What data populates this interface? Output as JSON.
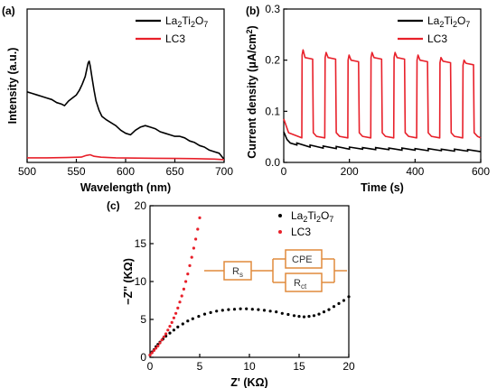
{
  "colors": {
    "la2ti2o7": "#000000",
    "lc3": "#e8202a",
    "circuit": "#e08a3c"
  },
  "chart_data": [
    {
      "panel": "(a)",
      "type": "line",
      "xlabel": "Wavelength (nm)",
      "ylabel": "Intensity (a.u.)",
      "xlim": [
        500,
        700
      ],
      "xticks": [
        500,
        550,
        600,
        650,
        700
      ],
      "ylim": [
        0,
        1
      ],
      "y_tick_labels": false,
      "legend_position": "top-right",
      "series": [
        {
          "name": "La2Ti2O7",
          "color": "#000000",
          "x": [
            500,
            505,
            510,
            515,
            520,
            525,
            530,
            535,
            538,
            542,
            546,
            550,
            553,
            556,
            559,
            561,
            562,
            563,
            564,
            566,
            568,
            570,
            573,
            576,
            580,
            585,
            590,
            595,
            600,
            605,
            610,
            615,
            620,
            625,
            630,
            635,
            640,
            645,
            650,
            655,
            660,
            665,
            670,
            675,
            680,
            685,
            690,
            695,
            700
          ],
          "y": [
            0.46,
            0.45,
            0.44,
            0.43,
            0.42,
            0.41,
            0.39,
            0.38,
            0.37,
            0.4,
            0.42,
            0.44,
            0.47,
            0.51,
            0.56,
            0.62,
            0.65,
            0.66,
            0.63,
            0.55,
            0.47,
            0.4,
            0.34,
            0.3,
            0.28,
            0.26,
            0.24,
            0.21,
            0.19,
            0.18,
            0.21,
            0.23,
            0.24,
            0.23,
            0.22,
            0.2,
            0.19,
            0.18,
            0.17,
            0.17,
            0.16,
            0.14,
            0.13,
            0.11,
            0.1,
            0.08,
            0.07,
            0.06,
            0.02
          ]
        },
        {
          "name": "LC3",
          "color": "#e8202a",
          "x": [
            500,
            520,
            540,
            555,
            560,
            564,
            568,
            575,
            590,
            610,
            630,
            650,
            670,
            690,
            700
          ],
          "y": [
            0.03,
            0.03,
            0.032,
            0.035,
            0.045,
            0.05,
            0.04,
            0.034,
            0.03,
            0.028,
            0.027,
            0.026,
            0.025,
            0.022,
            0.018
          ]
        }
      ]
    },
    {
      "panel": "(b)",
      "type": "line",
      "xlabel": "Time (s)",
      "ylabel": "Current density (μA/cm²)",
      "xlim": [
        0,
        600
      ],
      "xticks": [
        0,
        200,
        400,
        600
      ],
      "ylim": [
        0,
        0.3
      ],
      "yticks": [
        0.0,
        0.1,
        0.2,
        0.3
      ],
      "legend_position": "top-right",
      "series": [
        {
          "name": "La2Ti2O7",
          "color": "#000000",
          "x": [
            0,
            10,
            20,
            40,
            40,
            80,
            80,
            120,
            120,
            160,
            160,
            200,
            200,
            240,
            240,
            280,
            280,
            320,
            320,
            360,
            360,
            400,
            400,
            440,
            440,
            480,
            480,
            520,
            520,
            560,
            560,
            600
          ],
          "y": [
            0.06,
            0.045,
            0.038,
            0.034,
            0.038,
            0.03,
            0.034,
            0.028,
            0.032,
            0.027,
            0.031,
            0.026,
            0.03,
            0.026,
            0.029,
            0.025,
            0.029,
            0.025,
            0.028,
            0.024,
            0.028,
            0.024,
            0.027,
            0.023,
            0.027,
            0.023,
            0.026,
            0.022,
            0.026,
            0.022,
            0.025,
            0.021
          ]
        },
        {
          "name": "LC3",
          "color": "#e8202a",
          "cycles": [
            {
              "on": 55,
              "off": 90,
              "peak": 0.22,
              "plateau": 0.205
            },
            {
              "on": 125,
              "off": 160,
              "peak": 0.215,
              "plateau": 0.205
            },
            {
              "on": 195,
              "off": 230,
              "peak": 0.21,
              "plateau": 0.2
            },
            {
              "on": 265,
              "off": 300,
              "peak": 0.215,
              "plateau": 0.205
            },
            {
              "on": 335,
              "off": 370,
              "peak": 0.215,
              "plateau": 0.205
            },
            {
              "on": 405,
              "off": 440,
              "peak": 0.21,
              "plateau": 0.2
            },
            {
              "on": 475,
              "off": 510,
              "peak": 0.205,
              "plateau": 0.198
            },
            {
              "on": 545,
              "off": 580,
              "peak": 0.2,
              "plateau": 0.194
            }
          ],
          "baseline_start": 0.085,
          "baseline": 0.048
        }
      ]
    },
    {
      "panel": "(c)",
      "type": "scatter",
      "xlabel": "Z' (KΩ)",
      "ylabel": "−Z'' (KΩ)",
      "xlim": [
        0,
        20
      ],
      "xticks": [
        0,
        5,
        10,
        15,
        20
      ],
      "ylim": [
        0,
        20
      ],
      "yticks": [
        0,
        5,
        10,
        15,
        20
      ],
      "legend_position": "top-right",
      "series": [
        {
          "name": "La2Ti2O7",
          "color": "#000000",
          "x": [
            0.0,
            0.2,
            0.4,
            0.6,
            0.8,
            1.0,
            1.3,
            1.6,
            2.0,
            2.4,
            2.8,
            3.3,
            3.8,
            4.3,
            4.9,
            5.5,
            6.1,
            6.7,
            7.3,
            7.9,
            8.5,
            9.1,
            9.7,
            10.3,
            10.9,
            11.5,
            12.1,
            12.7,
            13.3,
            13.9,
            14.5,
            15.0,
            15.5,
            16.0,
            16.5,
            17.0,
            17.5,
            18.0,
            18.5,
            19.0,
            19.5,
            20.0
          ],
          "y": [
            0.3,
            0.7,
            1.0,
            1.4,
            1.7,
            2.0,
            2.4,
            2.8,
            3.2,
            3.6,
            4.0,
            4.4,
            4.8,
            5.1,
            5.4,
            5.7,
            5.9,
            6.1,
            6.2,
            6.3,
            6.35,
            6.4,
            6.4,
            6.35,
            6.3,
            6.2,
            6.1,
            6.0,
            5.8,
            5.65,
            5.5,
            5.4,
            5.35,
            5.4,
            5.5,
            5.7,
            6.0,
            6.3,
            6.7,
            7.1,
            7.5,
            8.0
          ]
        },
        {
          "name": "LC3",
          "color": "#e8202a",
          "x": [
            0.0,
            0.2,
            0.4,
            0.6,
            0.8,
            1.0,
            1.2,
            1.4,
            1.6,
            1.8,
            2.0,
            2.2,
            2.4,
            2.6,
            2.8,
            3.0,
            3.2,
            3.4,
            3.6,
            3.8,
            4.0,
            4.2,
            4.4,
            4.6,
            4.8,
            5.0
          ],
          "y": [
            0.3,
            0.6,
            0.9,
            1.2,
            1.5,
            1.9,
            2.3,
            2.7,
            3.1,
            3.6,
            4.1,
            4.6,
            5.2,
            5.8,
            6.5,
            7.3,
            8.1,
            9.0,
            10.0,
            11.0,
            12.1,
            13.2,
            14.4,
            15.6,
            16.9,
            18.4
          ]
        }
      ],
      "circuit": {
        "rs_label": "R",
        "rs_sub": "s",
        "cpe_label": "CPE",
        "rct_label": "R",
        "rct_sub": "ct"
      }
    }
  ]
}
